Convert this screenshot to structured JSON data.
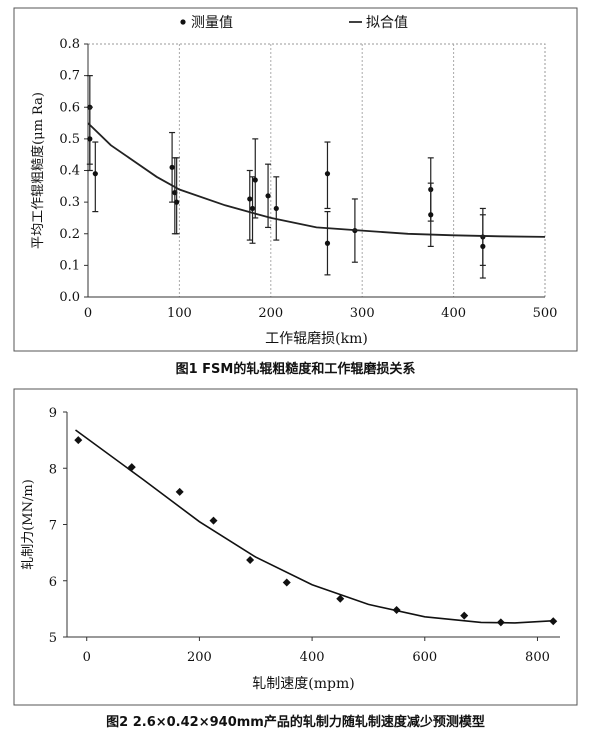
{
  "charts": [
    {
      "caption": "图1 FSM的轧辊粗糙度和工作辊磨损关系",
      "legend": [
        "测量值",
        "拟合值"
      ],
      "chart_data": {
        "type": "scatter",
        "xlabel": "工作辊磨损(km)",
        "ylabel": "平均工作辊粗糙度(μm Ra)",
        "xlim": [
          0,
          500
        ],
        "ylim": [
          0,
          0.8
        ],
        "xticks": [
          "0",
          "100",
          "200",
          "300",
          "400",
          "500"
        ],
        "yticks": [
          "0.0",
          "0.1",
          "0.2",
          "0.3",
          "0.4",
          "0.5",
          "0.6",
          "0.7",
          "0.8"
        ],
        "grid": "dotted",
        "legend_position": "top",
        "series": [
          {
            "name": "测量值",
            "kind": "errorbar",
            "points": [
              {
                "x": 2,
                "y": 0.6,
                "lo": 0.4,
                "hi": 0.7
              },
              {
                "x": 2,
                "y": 0.5,
                "lo": 0.42,
                "hi": 0.6
              },
              {
                "x": 8,
                "y": 0.39,
                "lo": 0.27,
                "hi": 0.49
              },
              {
                "x": 92,
                "y": 0.41,
                "lo": 0.3,
                "hi": 0.52
              },
              {
                "x": 95,
                "y": 0.33,
                "lo": 0.2,
                "hi": 0.44
              },
              {
                "x": 97,
                "y": 0.3,
                "lo": 0.2,
                "hi": 0.44
              },
              {
                "x": 177,
                "y": 0.31,
                "lo": 0.18,
                "hi": 0.4
              },
              {
                "x": 180,
                "y": 0.28,
                "lo": 0.17,
                "hi": 0.38
              },
              {
                "x": 183,
                "y": 0.37,
                "lo": 0.25,
                "hi": 0.5
              },
              {
                "x": 197,
                "y": 0.32,
                "lo": 0.22,
                "hi": 0.42
              },
              {
                "x": 206,
                "y": 0.28,
                "lo": 0.18,
                "hi": 0.38
              },
              {
                "x": 262,
                "y": 0.39,
                "lo": 0.28,
                "hi": 0.49
              },
              {
                "x": 262,
                "y": 0.17,
                "lo": 0.07,
                "hi": 0.27
              },
              {
                "x": 292,
                "y": 0.21,
                "lo": 0.11,
                "hi": 0.31
              },
              {
                "x": 375,
                "y": 0.34,
                "lo": 0.24,
                "hi": 0.44
              },
              {
                "x": 375,
                "y": 0.26,
                "lo": 0.16,
                "hi": 0.36
              },
              {
                "x": 432,
                "y": 0.19,
                "lo": 0.1,
                "hi": 0.28
              },
              {
                "x": 432,
                "y": 0.16,
                "lo": 0.06,
                "hi": 0.26
              }
            ]
          },
          {
            "name": "拟合值",
            "kind": "line",
            "x": [
              0,
              25,
              50,
              75,
              100,
              150,
              200,
              250,
              300,
              350,
              400,
              450,
              500
            ],
            "y": [
              0.55,
              0.48,
              0.43,
              0.38,
              0.34,
              0.29,
              0.25,
              0.22,
              0.21,
              0.2,
              0.195,
              0.192,
              0.19
            ]
          }
        ]
      }
    },
    {
      "caption": "图2 2.6×0.42×940mm产品的轧制力随轧制速度减少预测模型",
      "chart_data": {
        "type": "scatter",
        "xlabel": "轧制速度(mpm)",
        "ylabel": "轧制力(MN/m)",
        "xlim": [
          0,
          840
        ],
        "ylim": [
          5,
          9
        ],
        "xticks": [
          "0",
          "200",
          "400",
          "600",
          "800"
        ],
        "yticks": [
          "5",
          "6",
          "7",
          "8",
          "9"
        ],
        "series": [
          {
            "kind": "points",
            "x": [
              -15,
              80,
              165,
              225,
              290,
              355,
              450,
              550,
              670,
              735,
              828
            ],
            "y": [
              8.5,
              8.02,
              7.58,
              7.07,
              6.37,
              5.97,
              5.68,
              5.48,
              5.38,
              5.26,
              5.28
            ]
          },
          {
            "kind": "line",
            "x": [
              -20,
              100,
              200,
              300,
              400,
              500,
              600,
              700,
              760,
              830
            ],
            "y": [
              8.68,
              7.8,
              7.05,
              6.42,
              5.93,
              5.58,
              5.36,
              5.26,
              5.25,
              5.29
            ]
          }
        ]
      }
    }
  ]
}
